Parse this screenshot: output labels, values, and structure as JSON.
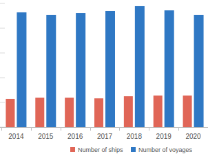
{
  "chart_data": {
    "type": "bar",
    "categories": [
      "2014",
      "2015",
      "2016",
      "2017",
      "2018",
      "2019",
      "2020"
    ],
    "series": [
      {
        "name": "Number of ships",
        "color": "#e06657",
        "values": [
          22.8,
          23.9,
          23.9,
          23.3,
          25,
          25.6,
          25.6
        ]
      },
      {
        "name": "Number of voyages",
        "color": "#2f78c4",
        "values": [
          92.8,
          90.6,
          92.2,
          93.9,
          97.8,
          94.4,
          90.6
        ]
      }
    ],
    "ylim": [
      0,
      100
    ],
    "yticks": [
      0,
      20,
      40,
      60,
      80,
      100
    ],
    "grid": false,
    "legend": "bottom",
    "tick_labels": "x"
  }
}
